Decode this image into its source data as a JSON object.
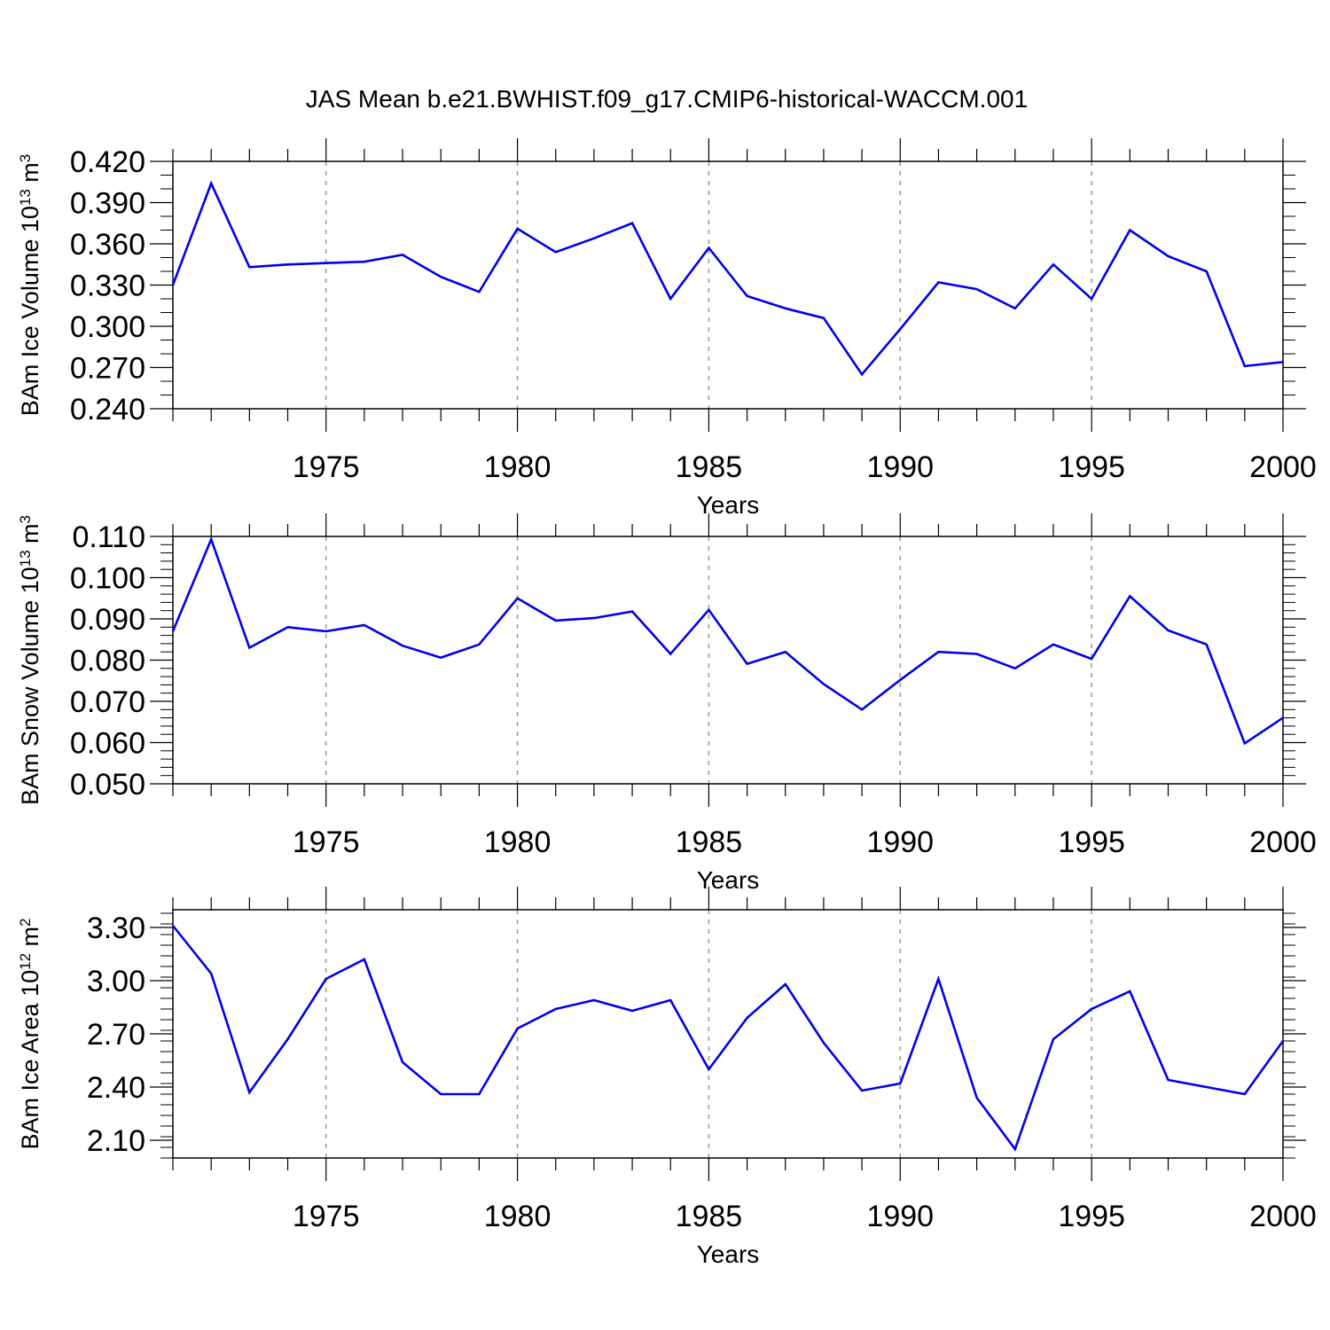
{
  "figure": {
    "title": "JAS Mean b.e21.BWHIST.f09_g17.CMIP6-historical-WACCM.001"
  },
  "chart_data": [
    {
      "type": "line",
      "ylabel": {
        "main": "BAm Ice Volume 10",
        "exponent": "13",
        "unit": " m",
        "unit_exponent": "3"
      },
      "xlabel": "Years",
      "xlim": [
        1971,
        2000
      ],
      "ylim": [
        0.24,
        0.42
      ],
      "yticks": [
        "0.240",
        "0.270",
        "0.300",
        "0.330",
        "0.360",
        "0.390",
        "0.420"
      ],
      "xticks": [
        "1975",
        "1980",
        "1985",
        "1990",
        "1995",
        "2000"
      ],
      "grid": "vertical dashed at major x ticks",
      "line_color": "#0000ee",
      "x": [
        1971,
        1972,
        1973,
        1974,
        1975,
        1976,
        1977,
        1978,
        1979,
        1980,
        1981,
        1982,
        1983,
        1984,
        1985,
        1986,
        1987,
        1988,
        1989,
        1990,
        1991,
        1992,
        1993,
        1994,
        1995,
        1996,
        1997,
        1998,
        1999,
        2000
      ],
      "y": [
        0.33,
        0.404,
        0.343,
        0.345,
        0.346,
        0.347,
        0.352,
        0.336,
        0.325,
        0.371,
        0.354,
        0.364,
        0.375,
        0.32,
        0.357,
        0.322,
        0.313,
        0.306,
        0.265,
        0.298,
        0.332,
        0.327,
        0.313,
        0.345,
        0.32,
        0.37,
        0.351,
        0.34,
        0.271,
        0.274
      ]
    },
    {
      "type": "line",
      "ylabel": {
        "main": "BAm Snow Volume 10",
        "exponent": "13",
        "unit": " m",
        "unit_exponent": "3"
      },
      "xlabel": "Years",
      "xlim": [
        1971,
        2000
      ],
      "ylim": [
        0.05,
        0.11
      ],
      "yticks": [
        "0.050",
        "0.060",
        "0.070",
        "0.080",
        "0.090",
        "0.100",
        "0.110"
      ],
      "xticks": [
        "1975",
        "1980",
        "1985",
        "1990",
        "1995",
        "2000"
      ],
      "grid": "vertical dashed at major x ticks",
      "line_color": "#0000ee",
      "x": [
        1971,
        1972,
        1973,
        1974,
        1975,
        1976,
        1977,
        1978,
        1979,
        1980,
        1981,
        1982,
        1983,
        1984,
        1985,
        1986,
        1987,
        1988,
        1989,
        1990,
        1991,
        1992,
        1993,
        1994,
        1995,
        1996,
        1997,
        1998,
        1999,
        2000
      ],
      "y": [
        0.087,
        0.1093,
        0.083,
        0.088,
        0.087,
        0.0885,
        0.0835,
        0.0806,
        0.0838,
        0.095,
        0.0896,
        0.0902,
        0.0918,
        0.0815,
        0.0922,
        0.0791,
        0.082,
        0.0742,
        0.068,
        0.0752,
        0.082,
        0.0815,
        0.078,
        0.0838,
        0.0803,
        0.0955,
        0.0872,
        0.0838,
        0.0598,
        0.066
      ]
    },
    {
      "type": "line",
      "ylabel": {
        "main": "BAm Ice Area 10",
        "exponent": "12",
        "unit": " m",
        "unit_exponent": "2"
      },
      "xlabel": "Years",
      "xlim": [
        1971,
        2000
      ],
      "ylim": [
        2.0,
        3.4
      ],
      "yticks": [
        "2.10",
        "2.40",
        "2.70",
        "3.00",
        "3.30"
      ],
      "xticks": [
        "1975",
        "1980",
        "1985",
        "1990",
        "1995",
        "2000"
      ],
      "grid": "vertical dashed at major x ticks",
      "line_color": "#0000ee",
      "x": [
        1971,
        1972,
        1973,
        1974,
        1975,
        1976,
        1977,
        1978,
        1979,
        1980,
        1981,
        1982,
        1983,
        1984,
        1985,
        1986,
        1987,
        1988,
        1989,
        1990,
        1991,
        1992,
        1993,
        1994,
        1995,
        1996,
        1997,
        1998,
        1999,
        2000
      ],
      "y": [
        3.31,
        3.04,
        2.37,
        2.67,
        3.01,
        3.12,
        2.54,
        2.36,
        2.36,
        2.73,
        2.84,
        2.89,
        2.83,
        2.89,
        2.5,
        2.79,
        2.98,
        2.65,
        2.38,
        2.42,
        3.01,
        2.34,
        2.05,
        2.67,
        2.84,
        2.94,
        2.44,
        2.4,
        2.36,
        2.66
      ]
    }
  ]
}
